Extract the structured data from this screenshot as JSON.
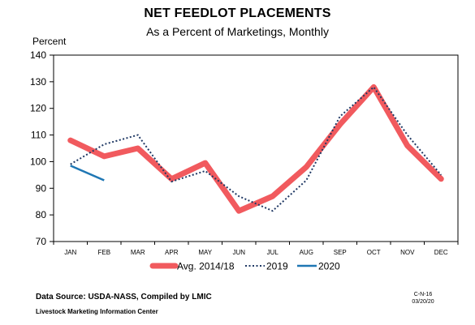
{
  "chart_data": {
    "type": "line",
    "title": "NET FEEDLOT PLACEMENTS",
    "subtitle": "As a Percent of Marketings, Monthly",
    "ylabel": "Percent",
    "xlabel": "",
    "ylim": [
      70,
      140
    ],
    "yticks": [
      70,
      80,
      90,
      100,
      110,
      120,
      130,
      140
    ],
    "categories": [
      "JAN",
      "FEB",
      "MAR",
      "APR",
      "MAY",
      "JUN",
      "JUL",
      "AUG",
      "SEP",
      "OCT",
      "NOV",
      "DEC"
    ],
    "grid": false,
    "legend_position": "bottom",
    "series": [
      {
        "name": "Avg. 2014/18",
        "color": "#f15a5e",
        "style": "thick",
        "values": [
          108,
          102,
          105,
          93.5,
          99.5,
          81.5,
          87,
          98,
          114,
          128,
          106,
          93.5
        ]
      },
      {
        "name": "2019",
        "color": "#1f3864",
        "style": "dotted",
        "values": [
          99,
          106.5,
          110,
          92.5,
          96.5,
          87,
          81.5,
          93,
          117,
          128,
          110,
          95
        ]
      },
      {
        "name": "2020",
        "color": "#1f77b4",
        "style": "solid",
        "values": [
          98.5,
          93,
          null,
          null,
          null,
          null,
          null,
          null,
          null,
          null,
          null,
          null
        ]
      }
    ]
  },
  "footer": {
    "source": "Data Source:  USDA-NASS, Compiled by LMIC",
    "org": "Livestock Marketing Information Center",
    "chart_id": "C-N-16",
    "date": "03/20/20"
  }
}
